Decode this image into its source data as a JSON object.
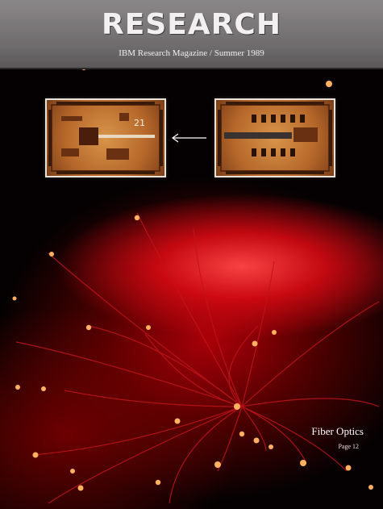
{
  "masthead": {
    "title": "RESEARCH",
    "subtitle": "IBM Research Magazine / Summer 1989"
  },
  "chips": {
    "left_label": "21"
  },
  "feature": {
    "title": "Fiber Optics",
    "page": "Page 12"
  },
  "colors": {
    "masthead_gray": "#7a7778",
    "fiber_red": "#d40a14",
    "fiber_tip": "#ffb060",
    "chip_orange": "#c47a36"
  }
}
